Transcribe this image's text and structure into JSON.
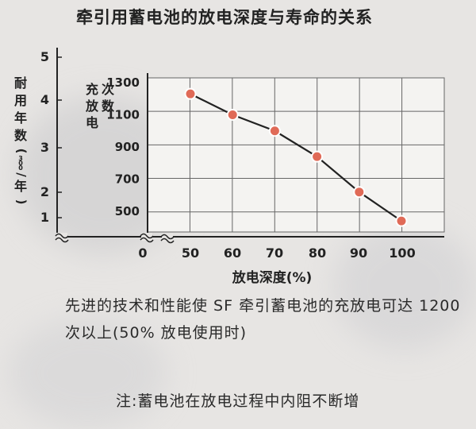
{
  "chart_data": {
    "type": "line",
    "title": "牵引用蓄电池的放电深度与寿命的关系",
    "xlabel": "放电深度(%)",
    "ylabel": "充放电次数",
    "y2label": "耐用年数(300/年)",
    "x": [
      50,
      60,
      70,
      80,
      90,
      100
    ],
    "x_ticks": [
      "0",
      "50",
      "60",
      "70",
      "80",
      "90",
      "100"
    ],
    "y_ticks": [
      "1300",
      "1100",
      "900",
      "700",
      "500"
    ],
    "y_range": [
      400,
      1300
    ],
    "y2_ticks": [
      "5",
      "4",
      "3",
      "2",
      "1"
    ],
    "series": [
      {
        "values": [
          1230,
          1100,
          1000,
          840,
          620,
          440
        ]
      }
    ],
    "grid": true,
    "colors": {
      "line": "#e06a57",
      "grid": "#666666",
      "axis": "#222222"
    }
  },
  "description": {
    "paragraph": "先进的技术和性能使 SF 牵引蓄电池的充放电可达 1200 次以上(50% 放电使用时)",
    "note": "注:蓄电池在放电过程中内阻不断增"
  }
}
